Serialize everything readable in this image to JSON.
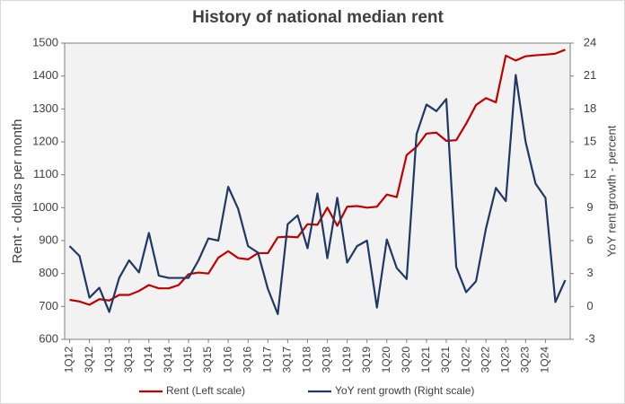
{
  "chart_data": {
    "type": "line",
    "title": "History of national median rent",
    "ylabel": "Rent - dollars per month",
    "y2label": "YoY rent growth - percent",
    "categories": [
      "1Q12",
      null,
      "3Q12",
      null,
      "1Q13",
      null,
      "3Q13",
      null,
      "1Q14",
      null,
      "3Q14",
      null,
      "1Q15",
      null,
      "3Q15",
      null,
      "1Q16",
      null,
      "3Q16",
      null,
      "1Q17",
      null,
      "3Q17",
      null,
      "1Q18",
      null,
      "3Q18",
      null,
      "1Q19",
      null,
      "3Q19",
      null,
      "1Q20",
      null,
      "3Q20",
      null,
      "1Q21",
      null,
      "3Q21",
      null,
      "1Q22",
      null,
      "3Q22",
      null,
      "1Q23",
      null,
      "3Q23",
      null,
      "1Q24",
      null,
      null
    ],
    "series": [
      {
        "name": "Rent (Left scale)",
        "color": "#c00000",
        "axis": "y",
        "values": [
          720,
          715,
          705,
          722,
          718,
          735,
          735,
          747,
          765,
          755,
          755,
          765,
          798,
          803,
          800,
          848,
          868,
          847,
          843,
          862,
          862,
          910,
          912,
          910,
          950,
          948,
          1000,
          945,
          1003,
          1005,
          1000,
          1003,
          1040,
          1032,
          1160,
          1185,
          1225,
          1228,
          1203,
          1205,
          1255,
          1312,
          1333,
          1320,
          1462,
          1447,
          1460,
          1463,
          1465,
          1468,
          1480
        ]
      },
      {
        "name": "YoY rent growth (Right scale)",
        "color": "#1f3864",
        "axis": "y2",
        "values": [
          5.5,
          4.6,
          0.8,
          1.7,
          -0.5,
          2.6,
          4.2,
          3.1,
          6.7,
          2.8,
          2.6,
          2.6,
          2.6,
          4.2,
          6.2,
          6.0,
          10.9,
          8.9,
          5.5,
          4.9,
          1.6,
          -0.7,
          7.5,
          8.3,
          5.3,
          10.3,
          4.4,
          9.9,
          4.0,
          5.5,
          6.0,
          -0.1,
          6.1,
          3.5,
          2.5,
          15.7,
          18.4,
          17.8,
          18.9,
          3.6,
          1.3,
          2.3,
          7.1,
          10.8,
          9.6,
          21.1,
          15.0,
          11.2,
          9.9,
          0.4,
          2.4
        ]
      }
    ],
    "ylim": [
      600,
      1500
    ],
    "yticks": [
      600,
      700,
      800,
      900,
      1000,
      1100,
      1200,
      1300,
      1400,
      1500
    ],
    "y2lim": [
      -3,
      24
    ],
    "y2ticks": [
      -3,
      0,
      3,
      6,
      9,
      12,
      15,
      18,
      21,
      24
    ],
    "grid": false,
    "legend": "bottom"
  }
}
